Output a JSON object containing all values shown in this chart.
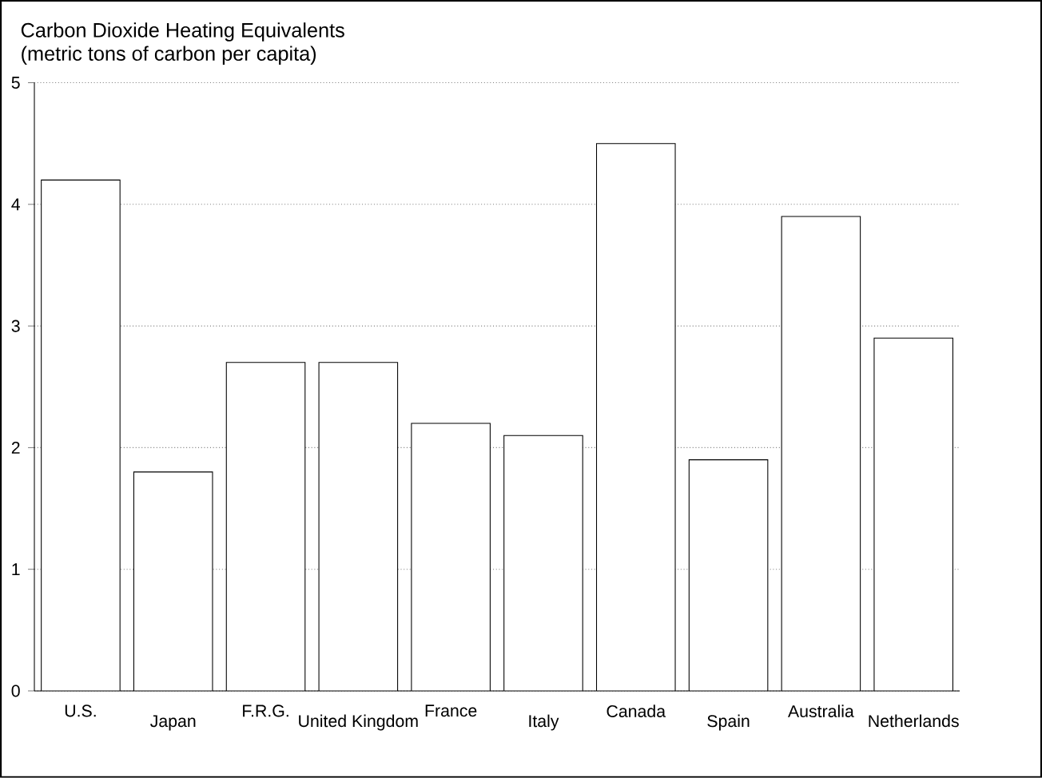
{
  "chart_data": {
    "type": "bar",
    "title": "Carbon Dioxide Heating Equivalents",
    "subtitle": "(metric tons of carbon per capita)",
    "categories": [
      "U.S.",
      "Japan",
      "F.R.G.",
      "United Kingdom",
      "France",
      "Italy",
      "Canada",
      "Spain",
      "Australia",
      "Netherlands"
    ],
    "values": [
      4.2,
      1.8,
      2.7,
      2.7,
      2.2,
      2.1,
      4.5,
      1.9,
      3.9,
      2.9
    ],
    "color": "#ffffff",
    "ylim": [
      0,
      5
    ],
    "yticks": [
      0,
      1,
      2,
      3,
      4,
      5
    ],
    "grid": "y"
  }
}
